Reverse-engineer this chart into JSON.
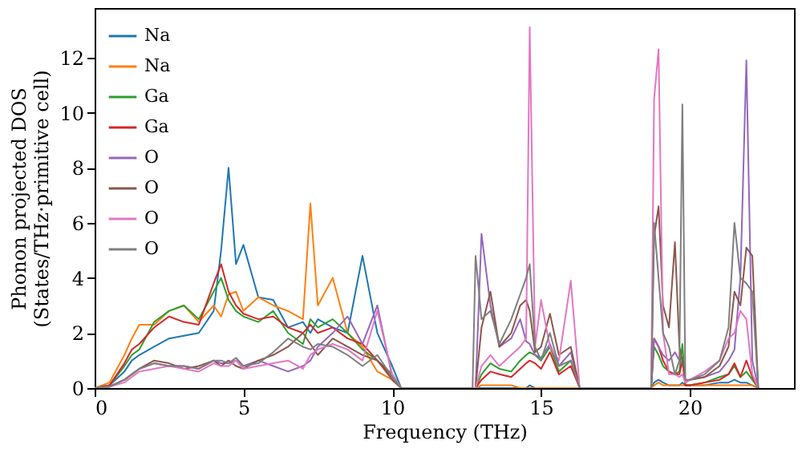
{
  "chart_data": {
    "type": "line",
    "xlabel": "Frequency (THz)",
    "ylabel": "Phonon projected DOS\n(States/THz·primitive cell)",
    "x": [
      0,
      0.5,
      1,
      1.25,
      1.5,
      2,
      2.5,
      3,
      3.5,
      4,
      4.25,
      4.5,
      4.75,
      5,
      5.5,
      6,
      6.5,
      7,
      7.25,
      7.5,
      8,
      8.5,
      9,
      9.5,
      10,
      10.3,
      12.7,
      12.8,
      13.0,
      13.3,
      13.6,
      14.0,
      14.3,
      14.5,
      14.62,
      14.8,
      15.0,
      15.3,
      15.6,
      16.0,
      16.3,
      18.7,
      18.8,
      18.95,
      19.1,
      19.3,
      19.5,
      19.65,
      19.75,
      19.85,
      20.0,
      20.5,
      21.0,
      21.3,
      21.5,
      21.7,
      21.9,
      22.1,
      22.3
    ],
    "series": [
      {
        "name": "Na",
        "color": "#1f77b4",
        "values": [
          0,
          0.1,
          0.6,
          1.0,
          1.2,
          1.5,
          1.8,
          1.9,
          2.0,
          2.8,
          5.0,
          8.0,
          4.5,
          5.2,
          3.3,
          3.2,
          2.2,
          2.4,
          2.0,
          2.5,
          2.2,
          2.0,
          4.8,
          2.0,
          0.8,
          0,
          0,
          0,
          0,
          0,
          0,
          0,
          0,
          0,
          0.1,
          0,
          0,
          0,
          0,
          0,
          0,
          0,
          0.2,
          0.3,
          0.2,
          0.1,
          0.1,
          0.1,
          0.2,
          0.1,
          0.1,
          0.1,
          0.2,
          0.2,
          0.3,
          0.2,
          0.2,
          0.1,
          0
        ]
      },
      {
        "name": "Na",
        "color": "#ff7f0e",
        "values": [
          0,
          0.2,
          1.2,
          1.8,
          2.3,
          2.3,
          2.8,
          3.0,
          2.4,
          3.0,
          2.6,
          3.4,
          3.5,
          2.8,
          3.3,
          3.0,
          2.8,
          2.5,
          6.7,
          3.0,
          4.0,
          2.0,
          1.5,
          0.6,
          0.3,
          0,
          0,
          0,
          0.1,
          0.1,
          0.1,
          0.1,
          0,
          0,
          0,
          0,
          0,
          0,
          0,
          0,
          0,
          0,
          0.1,
          0.2,
          0.1,
          0.1,
          0.1,
          0.1,
          0.1,
          0.1,
          0.1,
          0.1,
          0.1,
          0.1,
          0.1,
          0.1,
          0.1,
          0.1,
          0
        ]
      },
      {
        "name": "Ga",
        "color": "#2ca02c",
        "values": [
          0,
          0.1,
          0.8,
          1.2,
          1.4,
          2.4,
          2.8,
          3.0,
          2.5,
          3.5,
          4.0,
          3.2,
          2.8,
          2.6,
          2.4,
          2.8,
          2.0,
          1.6,
          2.5,
          2.2,
          2.5,
          2.0,
          1.4,
          1.0,
          0.5,
          0,
          0,
          0,
          0.5,
          0.9,
          0.7,
          0.6,
          1.0,
          1.2,
          1.3,
          1.2,
          1.0,
          1.5,
          0.6,
          1.0,
          0,
          0,
          1.5,
          1.2,
          0.8,
          0.6,
          0.5,
          0.6,
          1.6,
          0.1,
          0.1,
          0.2,
          0.4,
          0.5,
          0.8,
          0.4,
          0.6,
          0.3,
          0
        ]
      },
      {
        "name": "Ga",
        "color": "#d62728",
        "values": [
          0,
          0.1,
          0.9,
          1.4,
          1.6,
          2.2,
          2.6,
          2.4,
          2.3,
          3.8,
          4.5,
          3.5,
          3.0,
          2.7,
          2.5,
          2.6,
          2.2,
          2.0,
          2.3,
          2.0,
          2.2,
          1.8,
          1.6,
          1.0,
          0.4,
          0,
          0,
          0,
          0.3,
          0.6,
          0.5,
          0.4,
          0.7,
          0.9,
          1.0,
          0.9,
          0.7,
          1.3,
          0.5,
          0.8,
          0,
          0,
          1.8,
          1.5,
          1.0,
          0.6,
          0.5,
          0.5,
          1.0,
          0.1,
          0.1,
          0.2,
          0.3,
          0.5,
          0.9,
          0.4,
          1.0,
          0.4,
          0
        ]
      },
      {
        "name": "O",
        "color": "#9467bd",
        "values": [
          0,
          0.05,
          0.3,
          0.5,
          0.7,
          0.9,
          0.8,
          0.8,
          0.7,
          1.0,
          0.9,
          0.9,
          1.0,
          0.8,
          1.0,
          0.8,
          0.6,
          0.8,
          1.0,
          1.5,
          2.0,
          2.6,
          1.6,
          3.0,
          0.4,
          0,
          0,
          0,
          5.6,
          3.0,
          1.5,
          1.8,
          2.5,
          1.7,
          1.6,
          1.2,
          1.1,
          1.6,
          0.8,
          1.3,
          0,
          0,
          1.8,
          1.5,
          1.2,
          1.0,
          1.3,
          1.0,
          0.9,
          0.3,
          0.3,
          0.4,
          0.6,
          1.0,
          1.4,
          4.0,
          11.9,
          1.0,
          0
        ]
      },
      {
        "name": "O",
        "color": "#8c564b",
        "values": [
          0,
          0.05,
          0.3,
          0.5,
          0.7,
          1.0,
          0.9,
          0.7,
          0.8,
          1.0,
          0.8,
          1.0,
          0.8,
          0.7,
          1.0,
          1.2,
          1.5,
          2.0,
          1.6,
          1.2,
          1.8,
          1.5,
          1.2,
          1.0,
          0.3,
          0,
          0,
          0,
          2.2,
          3.5,
          1.5,
          2.0,
          3.0,
          3.2,
          2.8,
          1.3,
          1.5,
          2.7,
          1.2,
          1.5,
          0,
          0,
          5.5,
          6.6,
          3.0,
          2.2,
          5.3,
          1.5,
          1.0,
          0.2,
          0.3,
          0.4,
          0.8,
          1.5,
          3.5,
          3.0,
          5.1,
          4.8,
          0
        ]
      },
      {
        "name": "O",
        "color": "#e377c2",
        "values": [
          0,
          0.05,
          0.2,
          0.4,
          0.6,
          0.7,
          0.8,
          0.7,
          0.6,
          0.9,
          0.8,
          0.8,
          1.0,
          0.7,
          0.8,
          0.9,
          1.0,
          0.7,
          1.2,
          1.4,
          1.6,
          1.4,
          1.0,
          2.8,
          0.5,
          0,
          0,
          0,
          0.8,
          1.2,
          0.8,
          1.2,
          1.5,
          1.8,
          13.1,
          1.5,
          3.2,
          1.5,
          1.0,
          3.9,
          0,
          0,
          10.5,
          12.3,
          2.0,
          0.5,
          0.5,
          0.4,
          0.5,
          0.2,
          0.3,
          0.6,
          1.0,
          1.8,
          2.0,
          2.8,
          2.5,
          0.5,
          0
        ]
      },
      {
        "name": "O",
        "color": "#7f7f7f",
        "values": [
          0,
          0.05,
          0.3,
          0.5,
          0.7,
          0.9,
          0.8,
          0.8,
          0.7,
          1.0,
          1.0,
          0.9,
          1.1,
          0.8,
          0.9,
          1.3,
          1.8,
          1.5,
          1.4,
          1.6,
          1.5,
          1.2,
          0.8,
          1.2,
          0.4,
          0,
          0,
          4.8,
          2.5,
          2.8,
          1.6,
          2.5,
          3.4,
          4.0,
          4.5,
          1.5,
          1.0,
          2.0,
          0.8,
          1.0,
          0,
          0,
          6.0,
          4.0,
          2.0,
          1.5,
          0.5,
          1.0,
          10.3,
          0.3,
          0.3,
          0.5,
          1.0,
          2.2,
          6.0,
          4.0,
          3.8,
          3.5,
          0
        ]
      }
    ],
    "xlim": [
      0,
      23.5
    ],
    "ylim": [
      0,
      13.8
    ],
    "xticks": [
      0,
      5,
      10,
      15,
      20
    ],
    "yticks": [
      0,
      2,
      4,
      6,
      8,
      10,
      12
    ],
    "legend": "top left",
    "grid": false,
    "line_style": "solid",
    "marker": "none"
  }
}
